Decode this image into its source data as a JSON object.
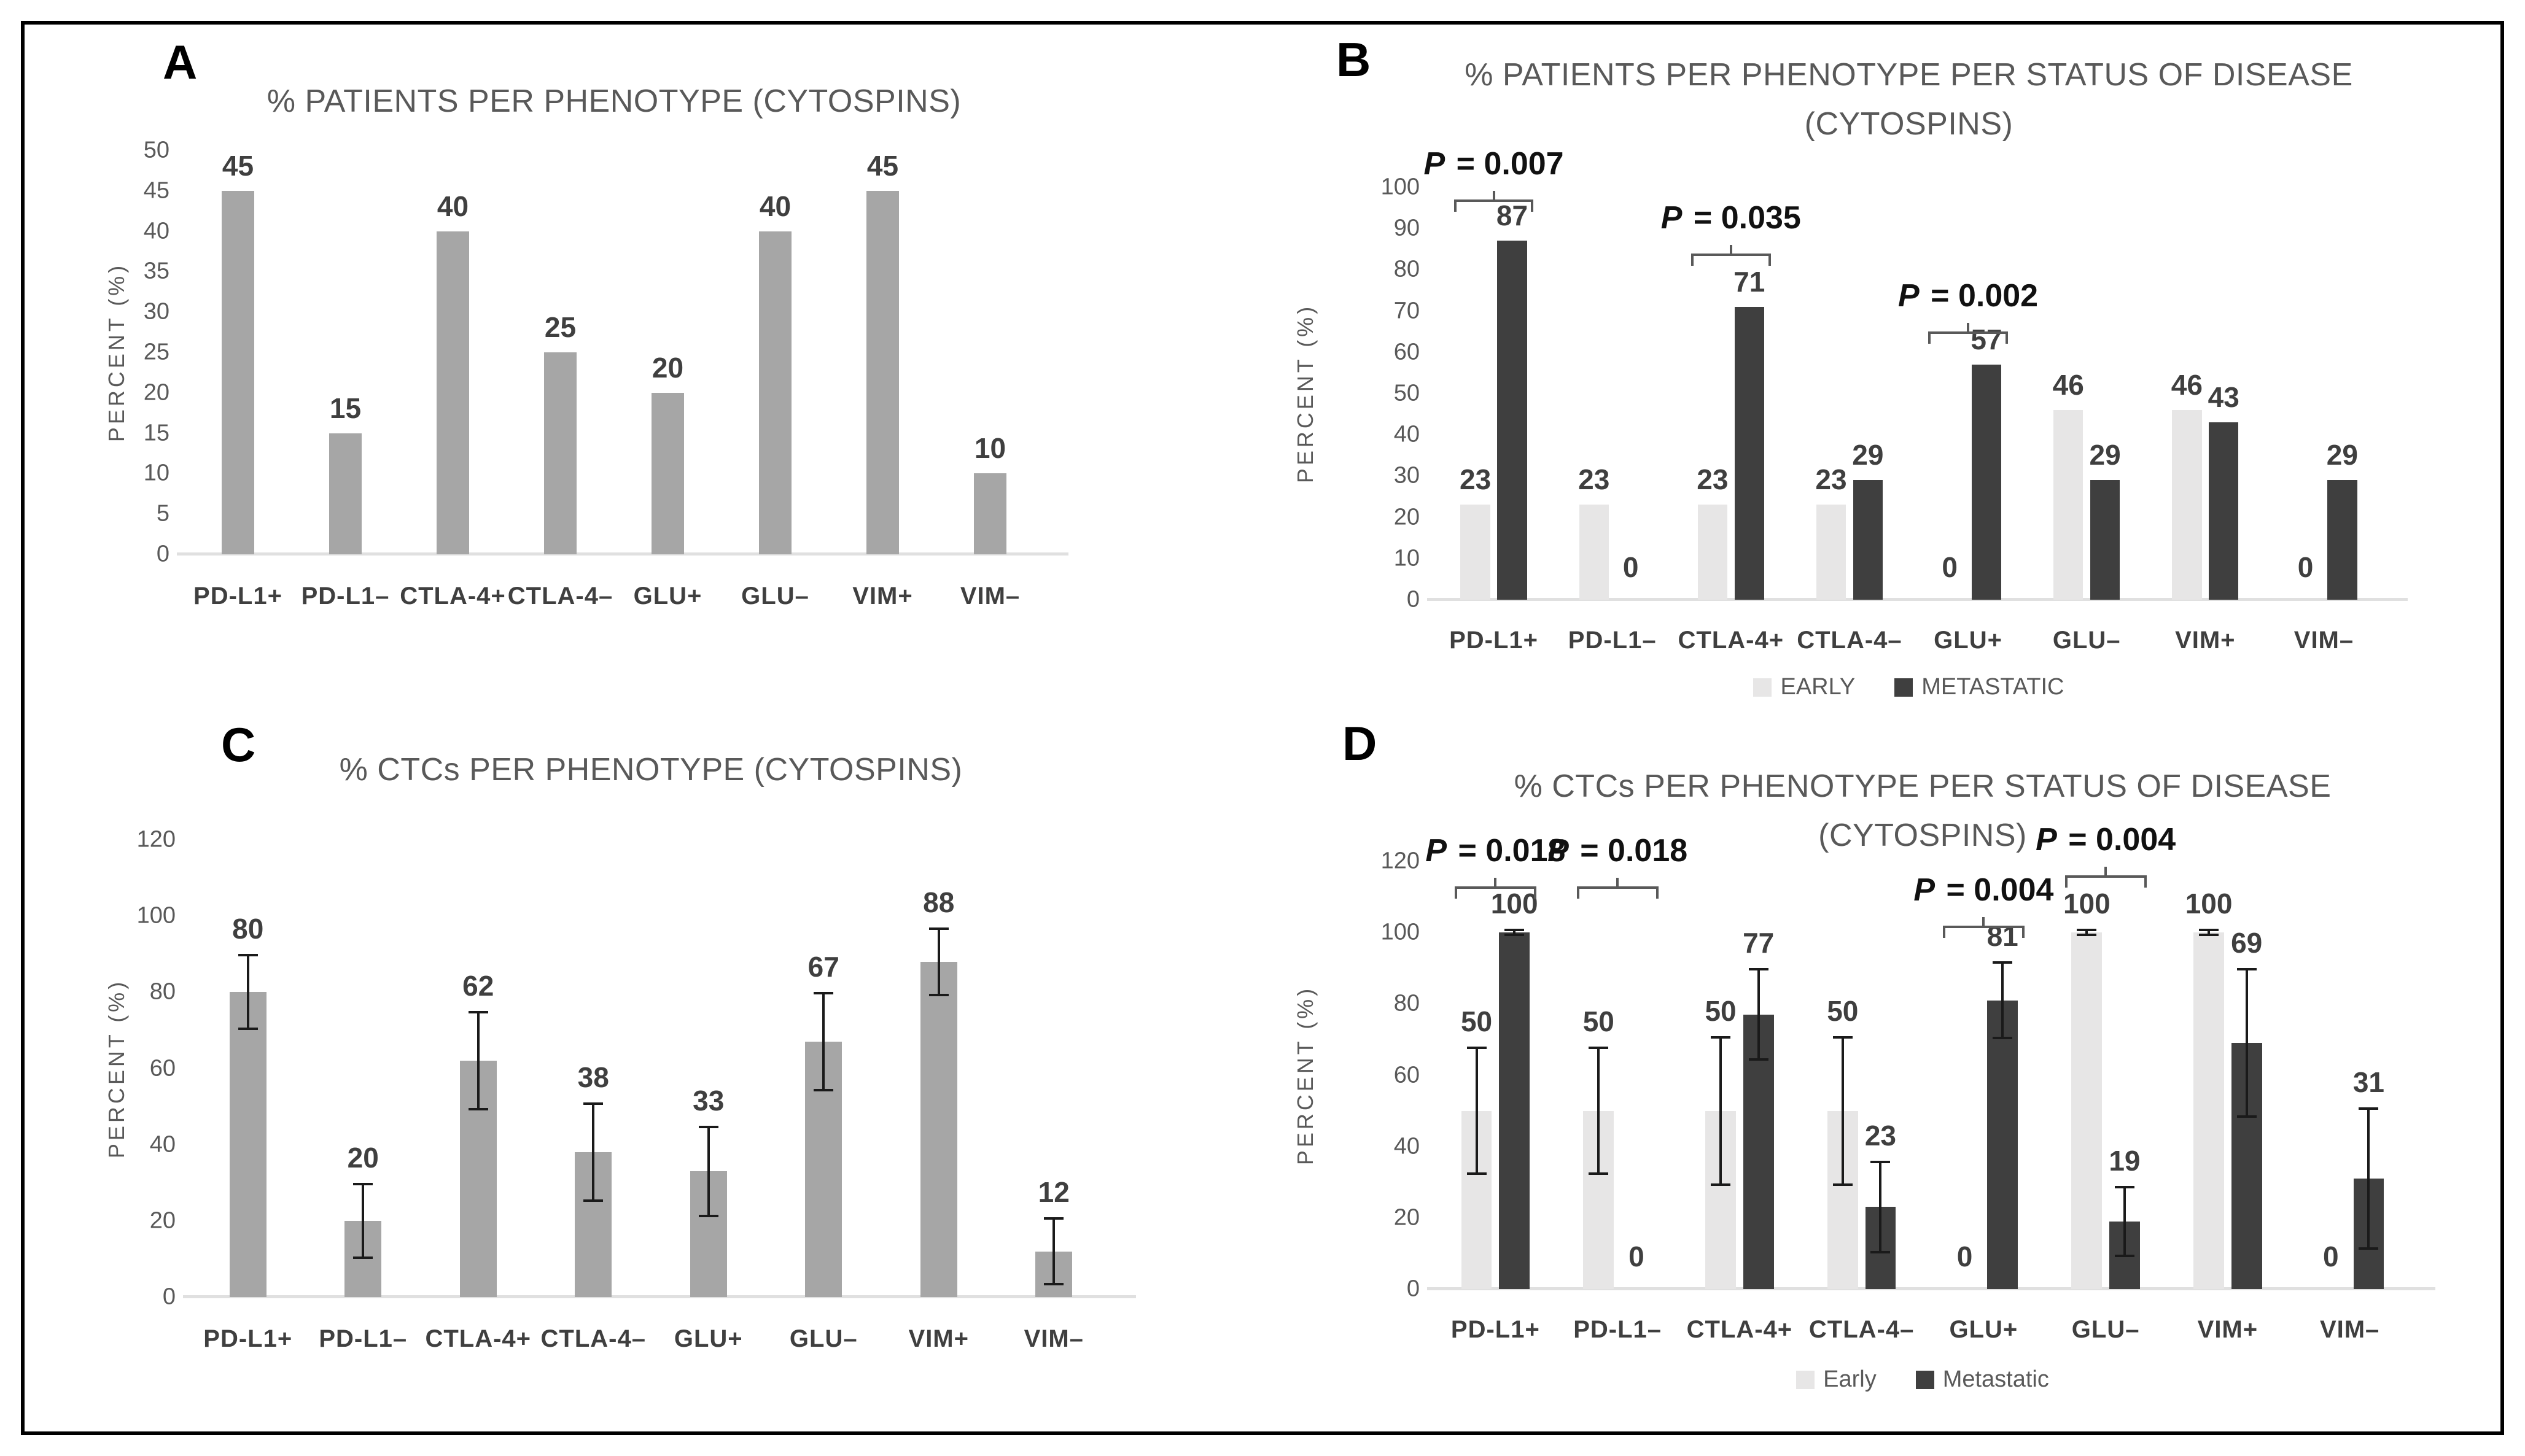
{
  "colors": {
    "single_bar": "#a6a6a6",
    "early_bar": "#e7e6e6",
    "metastatic_bar": "#3f3f3f",
    "axis_text": "#595959",
    "baseline": "#e0e0e0",
    "error_bar": "#1a1a1a"
  },
  "chart_data": [
    {
      "id": "A",
      "letter": "A",
      "type": "bar",
      "title_lines": [
        "% PATIENTS PER PHENOTYPE (CYTOSPINS)"
      ],
      "ylabel": "PERCENT (%)",
      "ylim": [
        0,
        50
      ],
      "ytick": 5,
      "grid": false,
      "legend_position": "none",
      "categories": [
        "PD-L1+",
        "PD-L1–",
        "CTLA-4+",
        "CTLA-4–",
        "GLU+",
        "GLU–",
        "VIM+",
        "VIM–"
      ],
      "series": [
        {
          "color": "#a6a6a6",
          "values": [
            45,
            15,
            40,
            25,
            20,
            40,
            45,
            10
          ]
        }
      ],
      "annotations": []
    },
    {
      "id": "B",
      "letter": "B",
      "type": "bar",
      "title_lines": [
        "% PATIENTS PER PHENOTYPE PER STATUS OF DISEASE",
        "(CYTOSPINS)"
      ],
      "ylabel": "PERCENT (%)",
      "ylim": [
        0,
        100
      ],
      "ytick": 10,
      "grid": false,
      "legend_position": "bottom",
      "legend": [
        "EARLY",
        "METASTATIC"
      ],
      "categories": [
        "PD-L1+",
        "PD-L1–",
        "CTLA-4+",
        "CTLA-4–",
        "GLU+",
        "GLU–",
        "VIM+",
        "VIM–"
      ],
      "series": [
        {
          "name": "EARLY",
          "color": "#e7e6e6",
          "values": [
            23,
            23,
            23,
            23,
            0,
            46,
            46,
            0
          ]
        },
        {
          "name": "METASTATIC",
          "color": "#3f3f3f",
          "values": [
            87,
            0,
            71,
            29,
            57,
            29,
            43,
            29
          ]
        }
      ],
      "annotations": [
        {
          "label": "P = 0.007",
          "group": 0,
          "y": 97
        },
        {
          "label": "P = 0.035",
          "group": 2,
          "y": 84
        },
        {
          "label": "P = 0.002",
          "group": 4,
          "y": 65
        }
      ]
    },
    {
      "id": "C",
      "letter": "C",
      "type": "bar",
      "title_lines": [
        "% CTCs PER PHENOTYPE (CYTOSPINS)"
      ],
      "ylabel": "PERCENT (%)",
      "ylim": [
        0,
        120
      ],
      "ytick": 20,
      "grid": false,
      "legend_position": "none",
      "categories": [
        "PD-L1+",
        "PD-L1–",
        "CTLA-4+",
        "CTLA-4–",
        "GLU+",
        "GLU–",
        "VIM+",
        "VIM–"
      ],
      "series": [
        {
          "color": "#a6a6a6",
          "values": [
            80,
            20,
            62,
            38,
            33,
            67,
            88,
            12
          ],
          "errors": [
            10,
            10,
            13,
            13,
            12,
            13,
            9,
            9
          ]
        }
      ],
      "annotations": []
    },
    {
      "id": "D",
      "letter": "D",
      "type": "bar",
      "title_lines": [
        "% CTCs PER PHENOTYPE PER STATUS OF DISEASE",
        "(CYTOSPINS)"
      ],
      "ylabel": "PERCENT (%)",
      "ylim": [
        0,
        120
      ],
      "ytick": 20,
      "grid": false,
      "legend_position": "bottom",
      "legend": [
        "Early",
        "Metastatic"
      ],
      "categories": [
        "PD-L1+",
        "PD-L1–",
        "CTLA-4+",
        "CTLA-4–",
        "GLU+",
        "GLU–",
        "VIM+",
        "VIM–"
      ],
      "series": [
        {
          "name": "Early",
          "color": "#e7e6e6",
          "values": [
            50,
            50,
            50,
            50,
            0,
            100,
            100,
            0
          ],
          "errors": [
            18,
            18,
            21,
            21,
            0,
            1,
            1,
            0
          ]
        },
        {
          "name": "Metastatic",
          "color": "#3f3f3f",
          "values": [
            100,
            0,
            77,
            23,
            81,
            19,
            69,
            31
          ],
          "errors": [
            1,
            0,
            13,
            13,
            11,
            10,
            21,
            20
          ]
        }
      ],
      "annotations": [
        {
          "label": "P = 0.018",
          "group": 0,
          "y": 113
        },
        {
          "label": "P = 0.018",
          "group": 1,
          "y": 113
        },
        {
          "label": "P = 0.004",
          "group": 4,
          "y": 102
        },
        {
          "label": "P = 0.004",
          "group": 5,
          "y": 116
        }
      ]
    }
  ]
}
